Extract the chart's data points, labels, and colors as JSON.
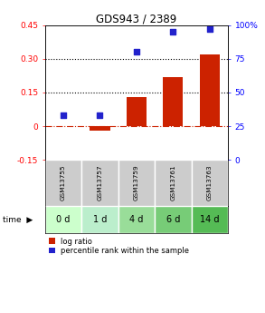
{
  "title": "GDS943 / 2389",
  "categories": [
    "GSM13755",
    "GSM13757",
    "GSM13759",
    "GSM13761",
    "GSM13763"
  ],
  "time_labels": [
    "0 d",
    "1 d",
    "4 d",
    "6 d",
    "14 d"
  ],
  "log_ratio": [
    0.0,
    -0.02,
    0.13,
    0.22,
    0.32
  ],
  "percentile": [
    33,
    33,
    80,
    95,
    97
  ],
  "bar_color": "#cc2200",
  "dot_color": "#2222cc",
  "ylim_left": [
    -0.15,
    0.45
  ],
  "ylim_right": [
    0,
    100
  ],
  "yticks_left": [
    -0.15,
    0.0,
    0.15,
    0.3,
    0.45
  ],
  "ytick_labels_left": [
    "-0.15",
    "0",
    "0.15",
    "0.30",
    "0.45"
  ],
  "yticks_right": [
    0,
    25,
    50,
    75,
    100
  ],
  "ytick_labels_right": [
    "0",
    "25",
    "50",
    "75",
    "100%"
  ],
  "hlines": [
    0.15,
    0.3
  ],
  "zero_line": 0.0,
  "time_colors": [
    "#ccffcc",
    "#bbeecc",
    "#99dd99",
    "#77cc77",
    "#55bb55"
  ],
  "gsm_row_color": "#cccccc",
  "legend_log_ratio": "log ratio",
  "legend_percentile": "percentile rank within the sample",
  "background_color": "#ffffff"
}
